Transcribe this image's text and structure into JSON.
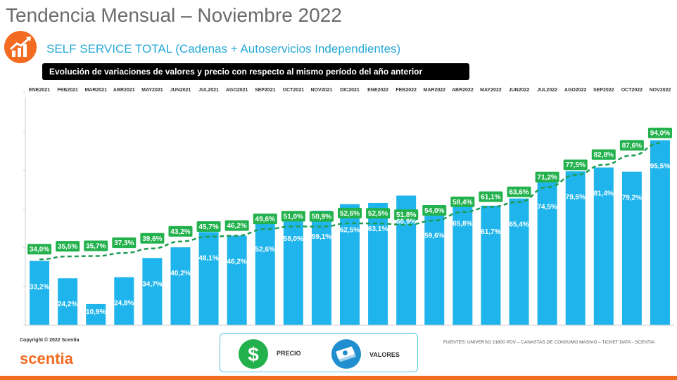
{
  "header": {
    "title": "Tendencia Mensual – Noviembre 2022",
    "subtitle": "SELF SERVICE TOTAL (Cadenas + Autoservicios Independientes)",
    "banner": "Evolución de variaciones de valores y precio con respecto al mismo período del año anterior"
  },
  "colors": {
    "bar": "#1fb5ec",
    "line": "#1f9d55",
    "label_green": "#22b14c",
    "accent": "#f26b21",
    "subtitle": "#27a9d6"
  },
  "icons": {
    "logo": "chart-growth-icon",
    "precio": "dollar-icon",
    "valores": "money-bill-icon"
  },
  "chart_data": {
    "type": "bar",
    "categories": [
      "ENE2021",
      "FEB2021",
      "MAR2021",
      "ABR2021",
      "MAY2021",
      "JUN2021",
      "JUL2021",
      "AGO2021",
      "SEP2021",
      "OCT2021",
      "NOV2021",
      "DIC2021",
      "ENE2022",
      "FEB2022",
      "MAR2022",
      "ABR2022",
      "MAY2022",
      "JUN2022",
      "JUL2022",
      "AGO2022",
      "SEP2022",
      "OCT2022",
      "NOV2022"
    ],
    "series": [
      {
        "name": "VALORES",
        "type": "bar",
        "values": [
          33.2,
          24.2,
          10.9,
          24.8,
          34.7,
          40.2,
          48.1,
          46.2,
          52.6,
          58.0,
          59.1,
          62.5,
          63.1,
          66.9,
          59.6,
          65.8,
          61.7,
          65.4,
          74.5,
          79.5,
          81.4,
          79.2,
          95.5
        ],
        "labels": [
          "33,2%",
          "24,2%",
          "10,9%",
          "24,8%",
          "34,7%",
          "40,2%",
          "48,1%",
          "46,2%",
          "52,6%",
          "58,0%",
          "59,1%",
          "62,5%",
          "63,1%",
          "66,9%",
          "59,6%",
          "65,8%",
          "61,7%",
          "65,4%",
          "74,5%",
          "79,5%",
          "81,4%",
          "79,2%",
          "95,5%"
        ]
      },
      {
        "name": "PRECIO",
        "type": "line",
        "style": "dashed",
        "values": [
          34.0,
          35.5,
          35.7,
          37.3,
          39.6,
          43.2,
          45.7,
          46.2,
          49.6,
          51.0,
          50.9,
          52.6,
          52.5,
          51.8,
          54.0,
          58.4,
          61.1,
          63.6,
          71.2,
          77.5,
          82.8,
          87.6,
          94.0
        ],
        "labels": [
          "34,0%",
          "35,5%",
          "35,7%",
          "37,3%",
          "39,6%",
          "43,2%",
          "45,7%",
          "46,2%",
          "49,6%",
          "51,0%",
          "50,9%",
          "52,6%",
          "52,5%",
          "51,8%",
          "54,0%",
          "58,4%",
          "61,1%",
          "63,6%",
          "71,2%",
          "77,5%",
          "82,8%",
          "87,6%",
          "94,0%"
        ]
      }
    ],
    "ylim": [
      0,
      120
    ],
    "legend": [
      {
        "name": "PRECIO",
        "icon": "dollar-icon"
      },
      {
        "name": "VALORES",
        "icon": "money-bill-icon"
      }
    ]
  },
  "footer": {
    "copyright": "Copyright © 2022 Scentia",
    "brand": "scentia",
    "sources": "FUENTES: UNIVERSO 21800 PDV – CANASTAS DE CONSUMO MASIVO – TICKET DATA - SCENTIA"
  }
}
